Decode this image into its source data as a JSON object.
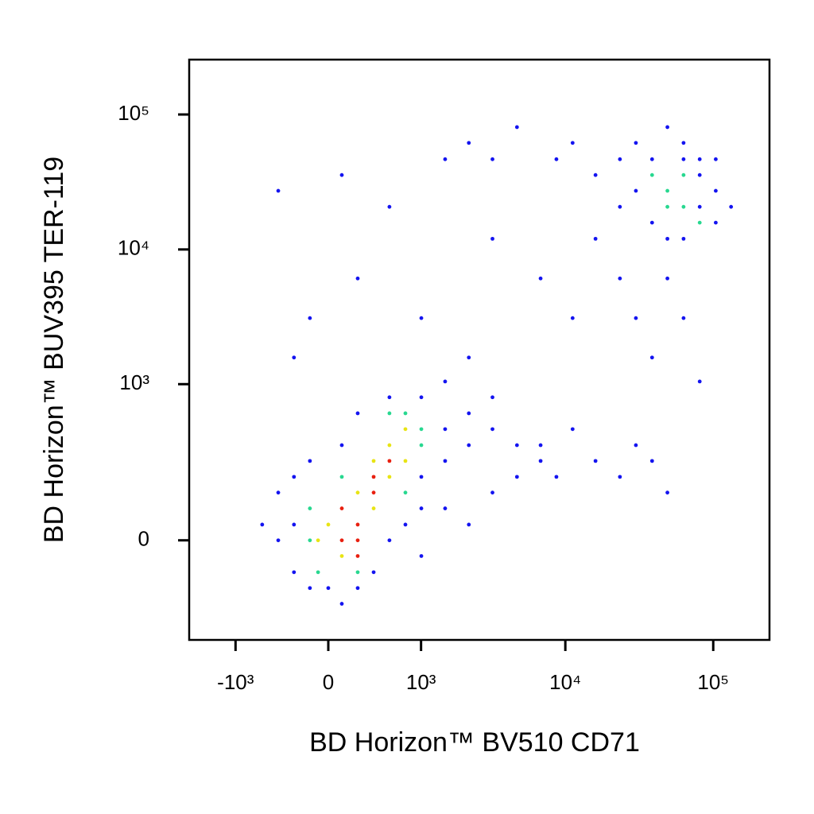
{
  "chart_data": {
    "type": "scatter",
    "xlabel": "BD Horizon™ BV510 CD71",
    "ylabel": "BD Horizon™ BUV395 TER-119",
    "xscale": "biexponential",
    "yscale": "biexponential",
    "xlim": [
      -2150,
      240000
    ],
    "ylim": [
      -370,
      255000
    ],
    "xticks": [
      {
        "value": -1000,
        "label": "-10³"
      },
      0,
      {
        "value": 1000,
        "label": "10³"
      },
      {
        "value": 10000,
        "label": "10⁴"
      },
      {
        "value": 100000,
        "label": "10⁵"
      }
    ],
    "yticks": [
      0,
      {
        "value": 1000,
        "label": "10³"
      },
      {
        "value": 10000,
        "label": "10⁴"
      },
      {
        "value": 100000,
        "label": "10⁵"
      }
    ],
    "series": [
      {
        "color": "#1414f0",
        "x": [
          -280,
          -430,
          -280,
          -145,
          0,
          106,
          237,
          383,
          551,
          755,
          1005,
          1005,
          1500,
          1500,
          2200,
          2200,
          3200,
          4700,
          4700,
          6800,
          3200,
          1500,
          -430,
          -145,
          106,
          237,
          551,
          1005,
          1500,
          3200,
          6800,
          16000,
          23400,
          30000,
          38600,
          49000,
          11200,
          8700,
          2200,
          1005,
          -610,
          -280,
          -280,
          -145,
          237,
          1005,
          3200,
          2200,
          6800,
          11200,
          16000,
          23400,
          30000,
          49000,
          63000,
          38600,
          81000,
          -430,
          106,
          551,
          8700,
          11200,
          16000,
          23400,
          30000,
          38600,
          49000,
          63000,
          81000,
          104000,
          104000,
          132000,
          81000,
          63000,
          49000,
          30000,
          2200,
          3200,
          1500,
          4700,
          81000,
          104000,
          23400,
          38600,
          63000
        ],
        "y": [
          38,
          0,
          -80,
          -127,
          -127,
          -183,
          -127,
          -80,
          0,
          38,
          80,
          183,
          253,
          456,
          341,
          603,
          456,
          341,
          183,
          253,
          127,
          80,
          127,
          253,
          341,
          603,
          797,
          797,
          1047,
          797,
          341,
          253,
          183,
          341,
          253,
          127,
          456,
          183,
          38,
          -38,
          38,
          183,
          1580,
          3100,
          6100,
          3100,
          12000,
          1580,
          6100,
          3100,
          12000,
          6100,
          3100,
          6100,
          3100,
          1580,
          1047,
          27200,
          35600,
          20700,
          46600,
          61600,
          35600,
          46600,
          27200,
          15800,
          12000,
          12000,
          20700,
          27200,
          15800,
          20700,
          46600,
          61600,
          80600,
          61600,
          61600,
          46600,
          46600,
          80600,
          35600,
          46600,
          20700,
          46600,
          46600
        ]
      },
      {
        "color": "#28d890",
        "x": [
          -145,
          -80,
          551,
          755,
          1005,
          106,
          1005,
          -145,
          237,
          755,
          49000,
          63000,
          38600,
          49000,
          63000,
          81000
        ],
        "y": [
          0,
          -80,
          603,
          603,
          341,
          183,
          456,
          80,
          -80,
          127,
          27200,
          20700,
          35600,
          20700,
          35600,
          15800
        ]
      },
      {
        "color": "#e8e414",
        "x": [
          0,
          106,
          383,
          551,
          755,
          237,
          551,
          -80,
          755,
          383
        ],
        "y": [
          38,
          -38,
          80,
          341,
          456,
          127,
          183,
          0,
          253,
          253
        ]
      },
      {
        "color": "#e82010",
        "x": [
          106,
          237,
          106,
          237,
          383,
          551,
          383,
          237
        ],
        "y": [
          0,
          38,
          80,
          -38,
          127,
          253,
          183,
          0
        ]
      }
    ]
  }
}
